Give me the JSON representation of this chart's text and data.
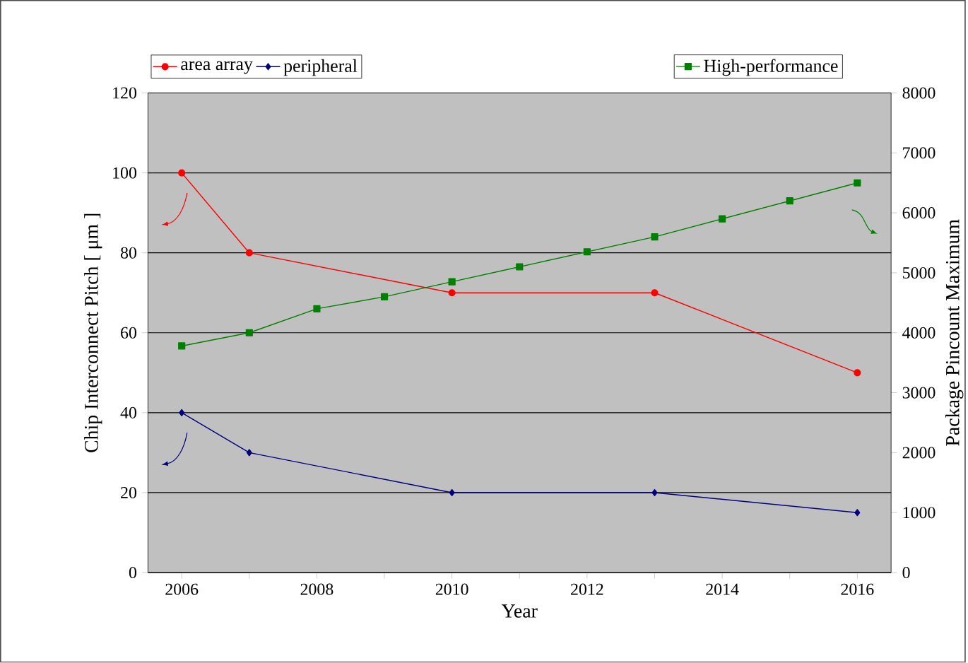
{
  "chart_data": {
    "type": "line",
    "xlabel": "Year",
    "ylabel": "Chip Interconnect Pitch [ μm ]",
    "y2label": "Package Pincount Maximum",
    "xlim": [
      2005.5,
      2016.5
    ],
    "xticks": [
      2006,
      {
        "value": 2007,
        "label": null
      },
      2008,
      {
        "value": 2009,
        "label": null
      },
      2010,
      {
        "value": 2011,
        "label": null
      },
      2012,
      {
        "value": 2013,
        "label": null
      },
      2014,
      {
        "value": 2015,
        "label": null
      },
      2016
    ],
    "ylim": [
      0,
      120
    ],
    "yticks": [
      0,
      20,
      40,
      60,
      80,
      100,
      120
    ],
    "y2lim": [
      0,
      8000
    ],
    "y2ticks": [
      0,
      1000,
      2000,
      3000,
      4000,
      5000,
      6000,
      7000,
      8000
    ],
    "grid": "y",
    "legend": "top",
    "series": [
      {
        "name": "area array",
        "color": "#ff0000",
        "marker": "circle",
        "x": [
          2006,
          2007,
          2010,
          2013,
          2016
        ],
        "values": [
          100,
          80,
          70,
          70,
          50
        ]
      },
      {
        "name": "peripheral",
        "color": "#000080",
        "marker": "diamond",
        "x": [
          2006,
          2007,
          2010,
          2013,
          2016
        ],
        "values": [
          40,
          30,
          20,
          20,
          15
        ]
      },
      {
        "name": "High-performance",
        "color": "#008000",
        "marker": "square",
        "axis": "y2",
        "x": [
          2006,
          2007,
          2008,
          2009,
          2010,
          2011,
          2012,
          2013,
          2014,
          2015,
          2016
        ],
        "values": [
          3780,
          4000,
          4400,
          4600,
          4850,
          5100,
          5350,
          5600,
          5900,
          6200,
          6500
        ]
      }
    ]
  }
}
